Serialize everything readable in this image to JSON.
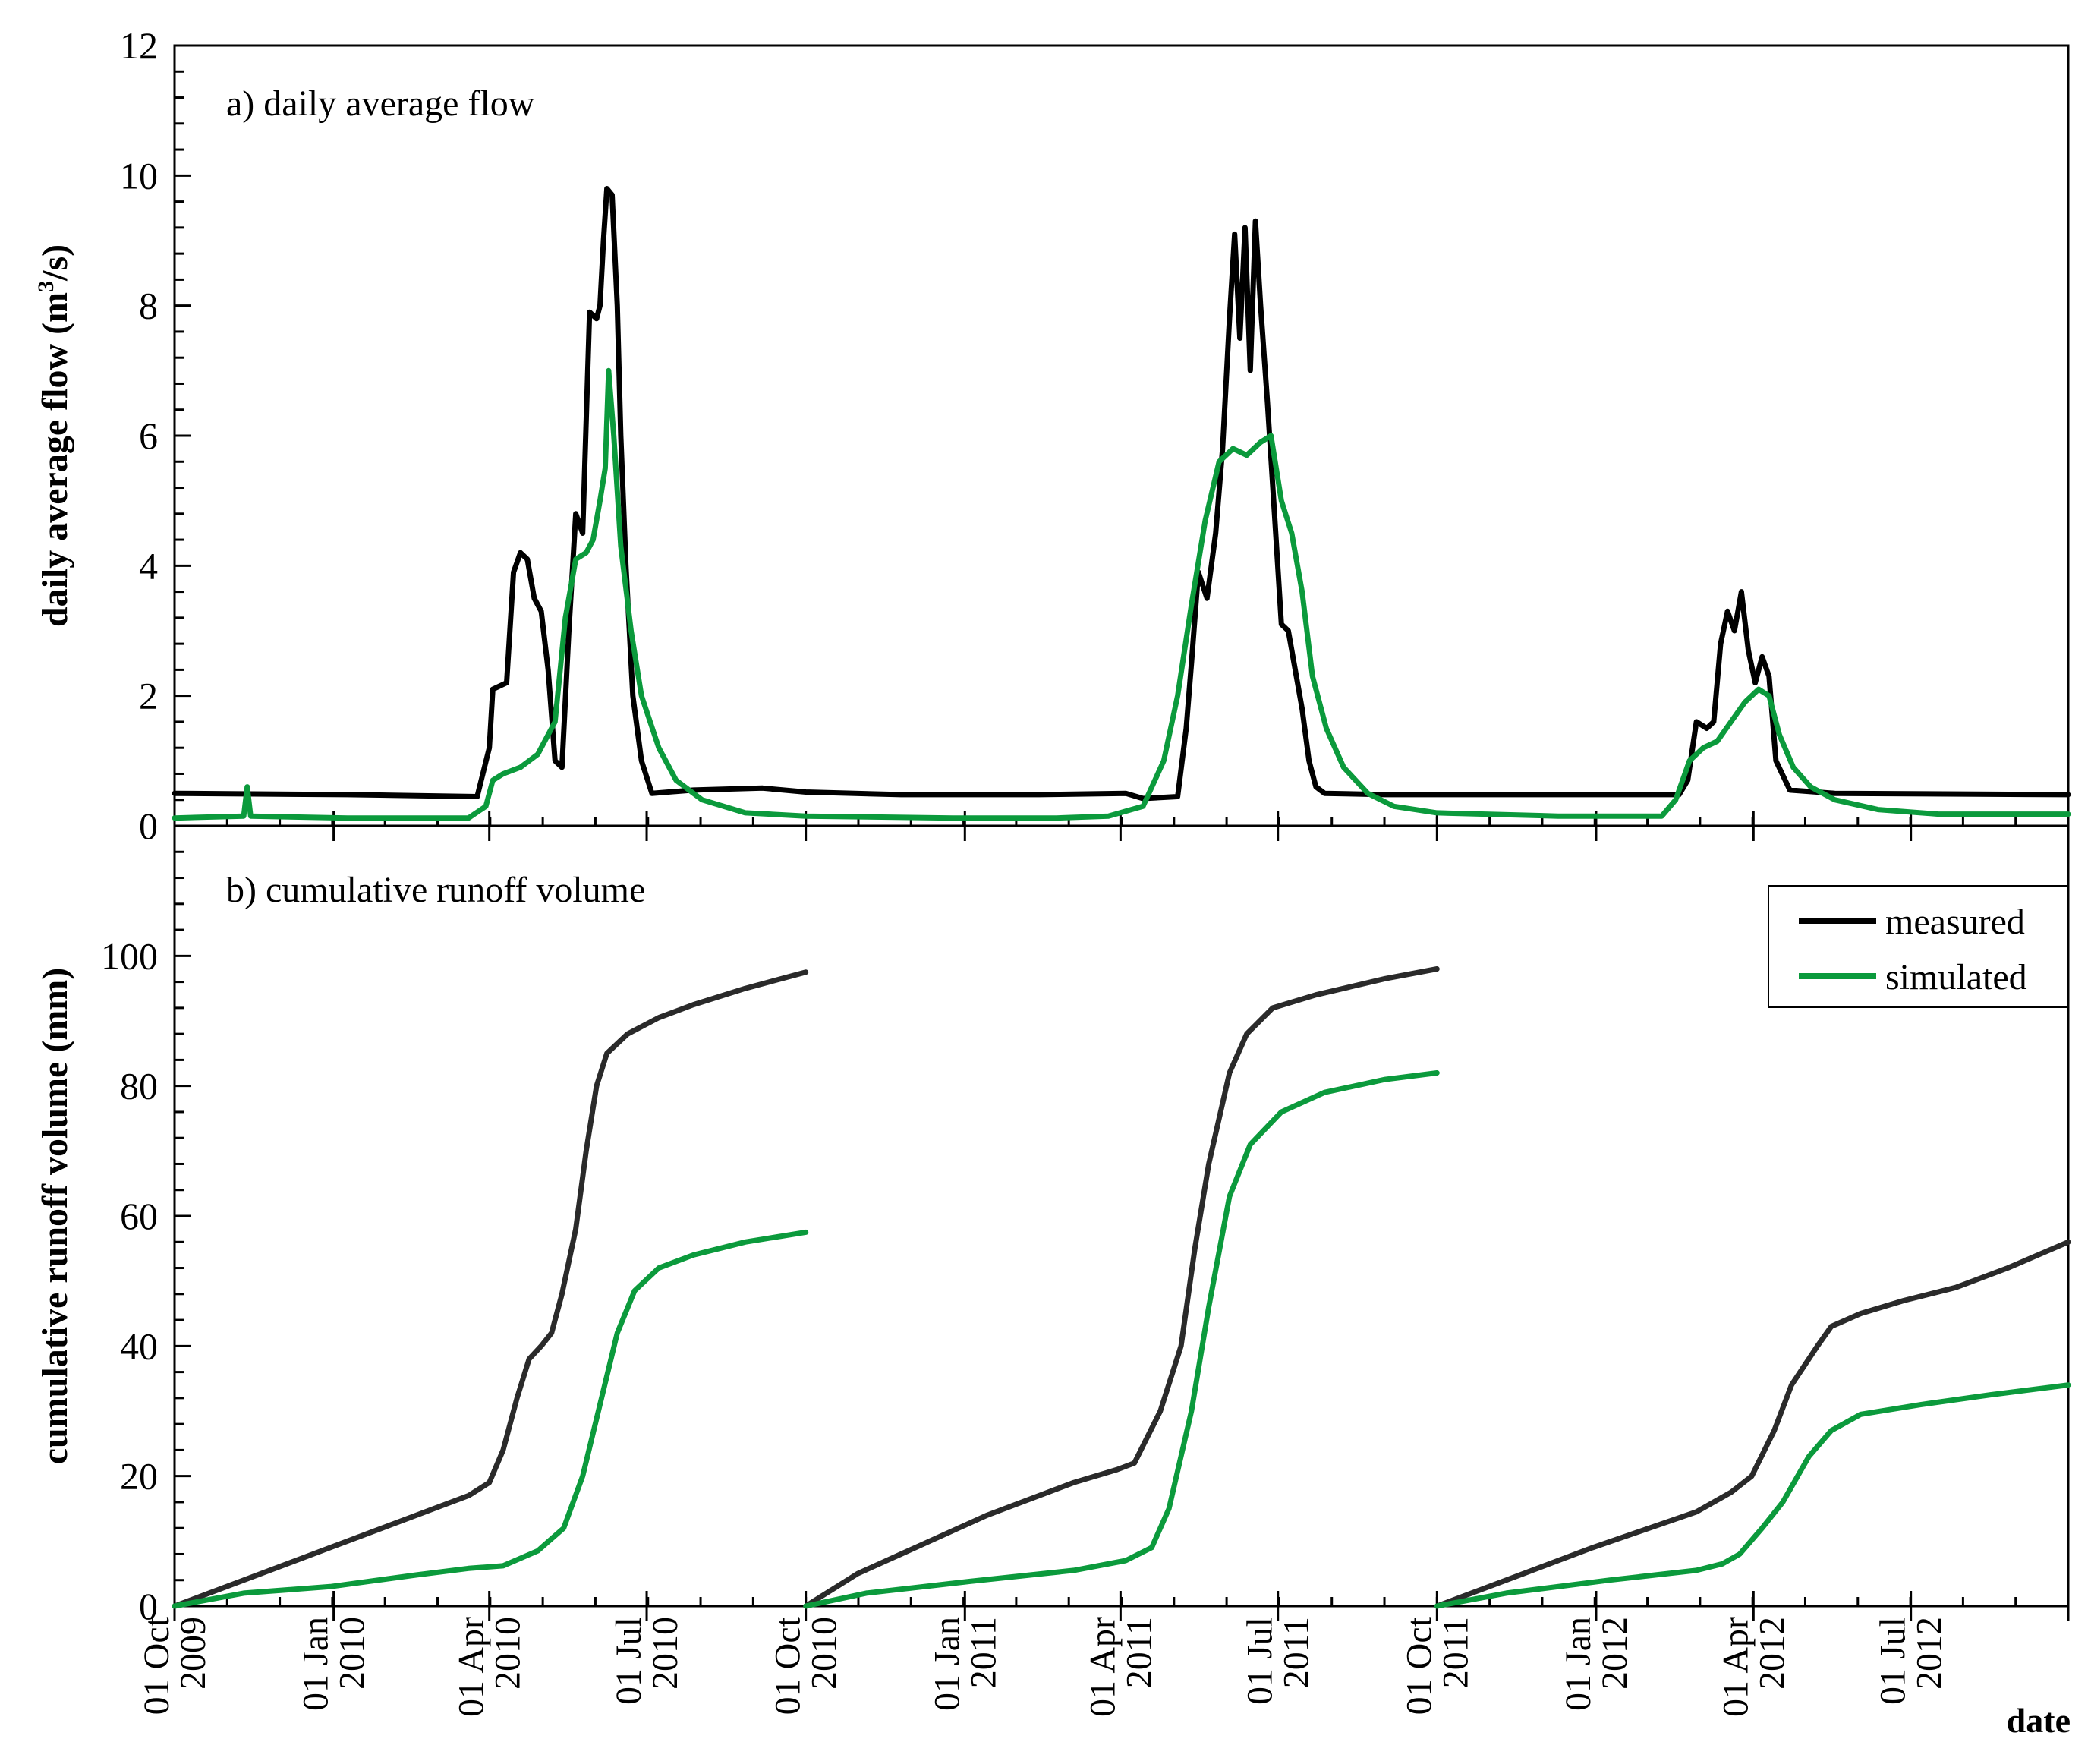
{
  "chart_data": [
    {
      "type": "line",
      "title": "a) daily average flow",
      "xlabel": "",
      "ylabel": "daily average flow (m³/s)",
      "ylim": [
        0,
        12
      ],
      "yticks": [
        0,
        2,
        4,
        6,
        8,
        10,
        12
      ],
      "xlim_days": [
        0,
        1095
      ],
      "series": [
        {
          "name": "measured",
          "color": "#000000",
          "points": [
            [
              0,
              0.5
            ],
            [
              100,
              0.48
            ],
            [
              175,
              0.45
            ],
            [
              182,
              1.2
            ],
            [
              184,
              2.1
            ],
            [
              192,
              2.2
            ],
            [
              196,
              3.9
            ],
            [
              200,
              4.2
            ],
            [
              204,
              4.1
            ],
            [
              208,
              3.5
            ],
            [
              212,
              3.3
            ],
            [
              216,
              2.4
            ],
            [
              220,
              1.0
            ],
            [
              224,
              0.9
            ],
            [
              228,
              3.0
            ],
            [
              232,
              4.8
            ],
            [
              236,
              4.5
            ],
            [
              240,
              7.9
            ],
            [
              244,
              7.8
            ],
            [
              246,
              8.0
            ],
            [
              248,
              9.0
            ],
            [
              250,
              9.8
            ],
            [
              253,
              9.7
            ],
            [
              256,
              8.0
            ],
            [
              258,
              6.0
            ],
            [
              261,
              4.0
            ],
            [
              265,
              2.0
            ],
            [
              270,
              1.0
            ],
            [
              276,
              0.5
            ],
            [
              300,
              0.55
            ],
            [
              340,
              0.58
            ],
            [
              365,
              0.52
            ],
            [
              420,
              0.48
            ],
            [
              500,
              0.48
            ],
            [
              550,
              0.5
            ],
            [
              560,
              0.42
            ],
            [
              580,
              0.45
            ],
            [
              585,
              1.5
            ],
            [
              588,
              2.5
            ],
            [
              592,
              3.9
            ],
            [
              597,
              3.5
            ],
            [
              602,
              4.5
            ],
            [
              606,
              5.8
            ],
            [
              610,
              7.8
            ],
            [
              613,
              9.1
            ],
            [
              616,
              7.5
            ],
            [
              619,
              9.2
            ],
            [
              622,
              7.0
            ],
            [
              625,
              9.3
            ],
            [
              628,
              8.0
            ],
            [
              632,
              6.5
            ],
            [
              636,
              4.8
            ],
            [
              640,
              3.1
            ],
            [
              644,
              3.0
            ],
            [
              648,
              2.4
            ],
            [
              652,
              1.8
            ],
            [
              656,
              1.0
            ],
            [
              660,
              0.6
            ],
            [
              665,
              0.5
            ],
            [
              700,
              0.48
            ],
            [
              800,
              0.48
            ],
            [
              870,
              0.48
            ],
            [
              875,
              0.7
            ],
            [
              880,
              1.6
            ],
            [
              886,
              1.5
            ],
            [
              890,
              1.6
            ],
            [
              894,
              2.8
            ],
            [
              898,
              3.3
            ],
            [
              902,
              3.0
            ],
            [
              906,
              3.6
            ],
            [
              910,
              2.7
            ],
            [
              914,
              2.2
            ],
            [
              918,
              2.6
            ],
            [
              922,
              2.3
            ],
            [
              926,
              1.0
            ],
            [
              934,
              0.55
            ],
            [
              960,
              0.5
            ],
            [
              1095,
              0.48
            ]
          ]
        },
        {
          "name": "simulated",
          "color": "#0b9a3c",
          "points": [
            [
              0,
              0.12
            ],
            [
              40,
              0.15
            ],
            [
              42,
              0.6
            ],
            [
              44,
              0.15
            ],
            [
              100,
              0.12
            ],
            [
              170,
              0.12
            ],
            [
              180,
              0.3
            ],
            [
              184,
              0.7
            ],
            [
              190,
              0.8
            ],
            [
              200,
              0.9
            ],
            [
              210,
              1.1
            ],
            [
              220,
              1.6
            ],
            [
              226,
              3.2
            ],
            [
              232,
              4.1
            ],
            [
              238,
              4.2
            ],
            [
              242,
              4.4
            ],
            [
              246,
              5.0
            ],
            [
              249,
              5.5
            ],
            [
              251,
              7.0
            ],
            [
              254,
              6.0
            ],
            [
              258,
              4.3
            ],
            [
              264,
              3.0
            ],
            [
              270,
              2.0
            ],
            [
              280,
              1.2
            ],
            [
              290,
              0.7
            ],
            [
              305,
              0.4
            ],
            [
              330,
              0.2
            ],
            [
              365,
              0.15
            ],
            [
              450,
              0.12
            ],
            [
              510,
              0.12
            ],
            [
              540,
              0.15
            ],
            [
              560,
              0.3
            ],
            [
              572,
              1.0
            ],
            [
              580,
              2.0
            ],
            [
              588,
              3.4
            ],
            [
              596,
              4.7
            ],
            [
              604,
              5.6
            ],
            [
              612,
              5.8
            ],
            [
              620,
              5.7
            ],
            [
              628,
              5.9
            ],
            [
              634,
              6.0
            ],
            [
              640,
              5.0
            ],
            [
              646,
              4.5
            ],
            [
              652,
              3.6
            ],
            [
              658,
              2.3
            ],
            [
              666,
              1.5
            ],
            [
              676,
              0.9
            ],
            [
              690,
              0.5
            ],
            [
              705,
              0.3
            ],
            [
              730,
              0.2
            ],
            [
              800,
              0.15
            ],
            [
              860,
              0.15
            ],
            [
              868,
              0.4
            ],
            [
              876,
              1.0
            ],
            [
              884,
              1.2
            ],
            [
              892,
              1.3
            ],
            [
              900,
              1.6
            ],
            [
              908,
              1.9
            ],
            [
              916,
              2.1
            ],
            [
              922,
              2.0
            ],
            [
              928,
              1.4
            ],
            [
              936,
              0.9
            ],
            [
              946,
              0.6
            ],
            [
              960,
              0.4
            ],
            [
              985,
              0.25
            ],
            [
              1020,
              0.18
            ],
            [
              1095,
              0.18
            ]
          ]
        }
      ]
    },
    {
      "type": "line",
      "title": "b) cumulative runoff volume",
      "xlabel": "date",
      "ylabel": "cumulative runoff volume (mm)",
      "ylim": [
        0,
        120
      ],
      "yticks": [
        0,
        20,
        40,
        60,
        80,
        100
      ],
      "xlim_days": [
        0,
        1095
      ],
      "legend": {
        "position": "top-right",
        "entries": [
          "measured",
          "simulated"
        ]
      },
      "series": [
        {
          "name": "measured",
          "color": "#2a2a2a",
          "segments": [
            [
              [
                0,
                0
              ],
              [
                90,
                9
              ],
              [
                170,
                17
              ],
              [
                182,
                19
              ],
              [
                190,
                24
              ],
              [
                198,
                32
              ],
              [
                205,
                38
              ],
              [
                212,
                40
              ],
              [
                218,
                42
              ],
              [
                224,
                48
              ],
              [
                232,
                58
              ],
              [
                238,
                70
              ],
              [
                244,
                80
              ],
              [
                250,
                85
              ],
              [
                262,
                88
              ],
              [
                280,
                90.5
              ],
              [
                300,
                92.5
              ],
              [
                330,
                95
              ],
              [
                365,
                97.5
              ]
            ],
            [
              [
                365,
                0
              ],
              [
                395,
                5
              ],
              [
                420,
                8
              ],
              [
                470,
                14
              ],
              [
                520,
                19
              ],
              [
                545,
                21
              ],
              [
                555,
                22
              ],
              [
                570,
                30
              ],
              [
                582,
                40
              ],
              [
                590,
                55
              ],
              [
                598,
                68
              ],
              [
                610,
                82
              ],
              [
                620,
                88
              ],
              [
                635,
                92
              ],
              [
                660,
                94
              ],
              [
                700,
                96.5
              ],
              [
                730,
                98
              ]
            ],
            [
              [
                730,
                0
              ],
              [
                780,
                5
              ],
              [
                820,
                9
              ],
              [
                880,
                14.5
              ],
              [
                900,
                17.5
              ],
              [
                912,
                20
              ],
              [
                925,
                27
              ],
              [
                935,
                34
              ],
              [
                950,
                40
              ],
              [
                958,
                43
              ],
              [
                975,
                45
              ],
              [
                1000,
                47
              ],
              [
                1030,
                49
              ],
              [
                1060,
                52
              ],
              [
                1095,
                56
              ]
            ]
          ]
        },
        {
          "name": "simulated",
          "color": "#0b9a3c",
          "segments": [
            [
              [
                0,
                0
              ],
              [
                40,
                2
              ],
              [
                90,
                3
              ],
              [
                140,
                4.8
              ],
              [
                170,
                5.8
              ],
              [
                190,
                6.2
              ],
              [
                210,
                8.5
              ],
              [
                225,
                12
              ],
              [
                236,
                20
              ],
              [
                246,
                31
              ],
              [
                256,
                42
              ],
              [
                266,
                48.5
              ],
              [
                280,
                52
              ],
              [
                300,
                54
              ],
              [
                330,
                56
              ],
              [
                365,
                57.5
              ]
            ],
            [
              [
                365,
                0
              ],
              [
                400,
                2
              ],
              [
                460,
                3.8
              ],
              [
                520,
                5.5
              ],
              [
                550,
                7
              ],
              [
                565,
                9
              ],
              [
                575,
                15
              ],
              [
                588,
                30
              ],
              [
                598,
                46
              ],
              [
                610,
                63
              ],
              [
                622,
                71
              ],
              [
                640,
                76
              ],
              [
                665,
                79
              ],
              [
                700,
                81
              ],
              [
                730,
                82
              ]
            ],
            [
              [
                730,
                0
              ],
              [
                770,
                2
              ],
              [
                830,
                4
              ],
              [
                880,
                5.5
              ],
              [
                895,
                6.5
              ],
              [
                905,
                8
              ],
              [
                918,
                12
              ],
              [
                930,
                16
              ],
              [
                945,
                23
              ],
              [
                958,
                27
              ],
              [
                975,
                29.5
              ],
              [
                1010,
                31
              ],
              [
                1050,
                32.5
              ],
              [
                1095,
                34
              ]
            ]
          ]
        }
      ]
    }
  ],
  "x_axis": {
    "tick_labels": [
      {
        "day": 0,
        "line1": "01 Oct",
        "line2": "2009"
      },
      {
        "day": 92,
        "line1": "01 Jan",
        "line2": "2010"
      },
      {
        "day": 182,
        "line1": "01 Apr",
        "line2": "2010"
      },
      {
        "day": 273,
        "line1": "01 Jul",
        "line2": "2010"
      },
      {
        "day": 365,
        "line1": "01 Oct",
        "line2": "2010"
      },
      {
        "day": 457,
        "line1": "01 Jan",
        "line2": "2011"
      },
      {
        "day": 547,
        "line1": "01 Apr",
        "line2": "2011"
      },
      {
        "day": 638,
        "line1": "01 Jul",
        "line2": "2011"
      },
      {
        "day": 730,
        "line1": "01 Oct",
        "line2": "2011"
      },
      {
        "day": 822,
        "line1": "01 Jan",
        "line2": "2012"
      },
      {
        "day": 913,
        "line1": "01 Apr",
        "line2": "2012"
      },
      {
        "day": 1004,
        "line1": "01 Jul",
        "line2": "2012"
      }
    ]
  },
  "labels": {
    "panel_a": "a) daily average flow",
    "panel_b": "b) cumulative runoff volume",
    "ylabel_a_prefix": "daily average flow (m",
    "ylabel_a_sup": "3",
    "ylabel_a_suffix": "/s)",
    "ylabel_b": "cumulative runoff volume (mm)",
    "xlabel": "date",
    "legend_measured": "measured",
    "legend_simulated": "simulated"
  }
}
